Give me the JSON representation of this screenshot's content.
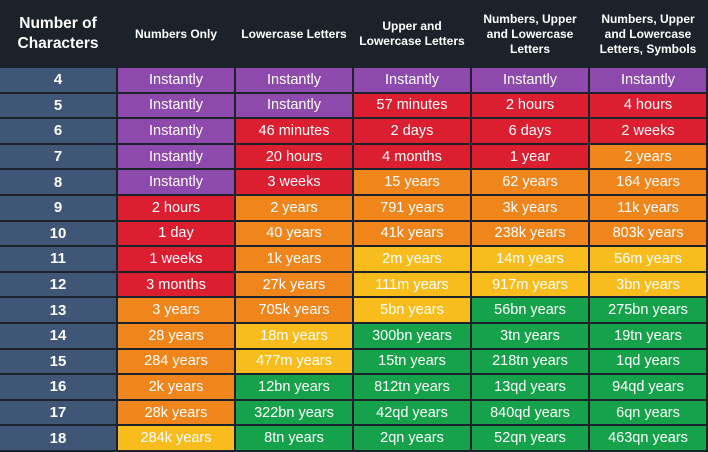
{
  "header": {
    "cols": [
      "Number of Characters",
      "Numbers Only",
      "Lowercase Letters",
      "Upper and Lowercase Letters",
      "Numbers, Upper and Lowercase Letters",
      "Numbers, Upper and Lowercase Letters, Symbols"
    ]
  },
  "colors": {
    "purple": "#8e49ad",
    "red": "#dc1f30",
    "orange": "#f0851c",
    "yellow": "#f8bd1d",
    "green": "#16a24a",
    "label": "#3f5676",
    "background": "#1b2229"
  },
  "rows": [
    {
      "n": "4",
      "cells": [
        [
          "Instantly",
          "purple"
        ],
        [
          "Instantly",
          "purple"
        ],
        [
          "Instantly",
          "purple"
        ],
        [
          "Instantly",
          "purple"
        ],
        [
          "Instantly",
          "purple"
        ]
      ]
    },
    {
      "n": "5",
      "cells": [
        [
          "Instantly",
          "purple"
        ],
        [
          "Instantly",
          "purple"
        ],
        [
          "57 minutes",
          "red"
        ],
        [
          "2 hours",
          "red"
        ],
        [
          "4 hours",
          "red"
        ]
      ]
    },
    {
      "n": "6",
      "cells": [
        [
          "Instantly",
          "purple"
        ],
        [
          "46 minutes",
          "red"
        ],
        [
          "2 days",
          "red"
        ],
        [
          "6 days",
          "red"
        ],
        [
          "2 weeks",
          "red"
        ]
      ]
    },
    {
      "n": "7",
      "cells": [
        [
          "Instantly",
          "purple"
        ],
        [
          "20 hours",
          "red"
        ],
        [
          "4 months",
          "red"
        ],
        [
          "1 year",
          "red"
        ],
        [
          "2 years",
          "orange"
        ]
      ]
    },
    {
      "n": "8",
      "cells": [
        [
          "Instantly",
          "purple"
        ],
        [
          "3 weeks",
          "red"
        ],
        [
          "15 years",
          "orange"
        ],
        [
          "62 years",
          "orange"
        ],
        [
          "164 years",
          "orange"
        ]
      ]
    },
    {
      "n": "9",
      "cells": [
        [
          "2 hours",
          "red"
        ],
        [
          "2 years",
          "orange"
        ],
        [
          "791 years",
          "orange"
        ],
        [
          "3k years",
          "orange"
        ],
        [
          "11k years",
          "orange"
        ]
      ]
    },
    {
      "n": "10",
      "cells": [
        [
          "1 day",
          "red"
        ],
        [
          "40 years",
          "orange"
        ],
        [
          "41k years",
          "orange"
        ],
        [
          "238k years",
          "orange"
        ],
        [
          "803k years",
          "orange"
        ]
      ]
    },
    {
      "n": "11",
      "cells": [
        [
          "1 weeks",
          "red"
        ],
        [
          "1k years",
          "orange"
        ],
        [
          "2m years",
          "yellow"
        ],
        [
          "14m years",
          "yellow"
        ],
        [
          "56m years",
          "yellow"
        ]
      ]
    },
    {
      "n": "12",
      "cells": [
        [
          "3 months",
          "red"
        ],
        [
          "27k years",
          "orange"
        ],
        [
          "111m years",
          "yellow"
        ],
        [
          "917m years",
          "yellow"
        ],
        [
          "3bn years",
          "yellow"
        ]
      ]
    },
    {
      "n": "13",
      "cells": [
        [
          "3 years",
          "orange"
        ],
        [
          "705k years",
          "orange"
        ],
        [
          "5bn years",
          "yellow"
        ],
        [
          "56bn years",
          "green"
        ],
        [
          "275bn years",
          "green"
        ]
      ]
    },
    {
      "n": "14",
      "cells": [
        [
          "28 years",
          "orange"
        ],
        [
          "18m years",
          "yellow"
        ],
        [
          "300bn years",
          "green"
        ],
        [
          "3tn years",
          "green"
        ],
        [
          "19tn years",
          "green"
        ]
      ]
    },
    {
      "n": "15",
      "cells": [
        [
          "284 years",
          "orange"
        ],
        [
          "477m years",
          "yellow"
        ],
        [
          "15tn years",
          "green"
        ],
        [
          "218tn years",
          "green"
        ],
        [
          "1qd years",
          "green"
        ]
      ]
    },
    {
      "n": "16",
      "cells": [
        [
          "2k years",
          "orange"
        ],
        [
          "12bn years",
          "green"
        ],
        [
          "812tn years",
          "green"
        ],
        [
          "13qd years",
          "green"
        ],
        [
          "94qd years",
          "green"
        ]
      ]
    },
    {
      "n": "17",
      "cells": [
        [
          "28k years",
          "orange"
        ],
        [
          "322bn years",
          "green"
        ],
        [
          "42qd years",
          "green"
        ],
        [
          "840qd years",
          "green"
        ],
        [
          "6qn years",
          "green"
        ]
      ]
    },
    {
      "n": "18",
      "cells": [
        [
          "284k years",
          "yellow"
        ],
        [
          "8tn years",
          "green"
        ],
        [
          "2qn years",
          "green"
        ],
        [
          "52qn years",
          "green"
        ],
        [
          "463qn years",
          "green"
        ]
      ]
    }
  ]
}
